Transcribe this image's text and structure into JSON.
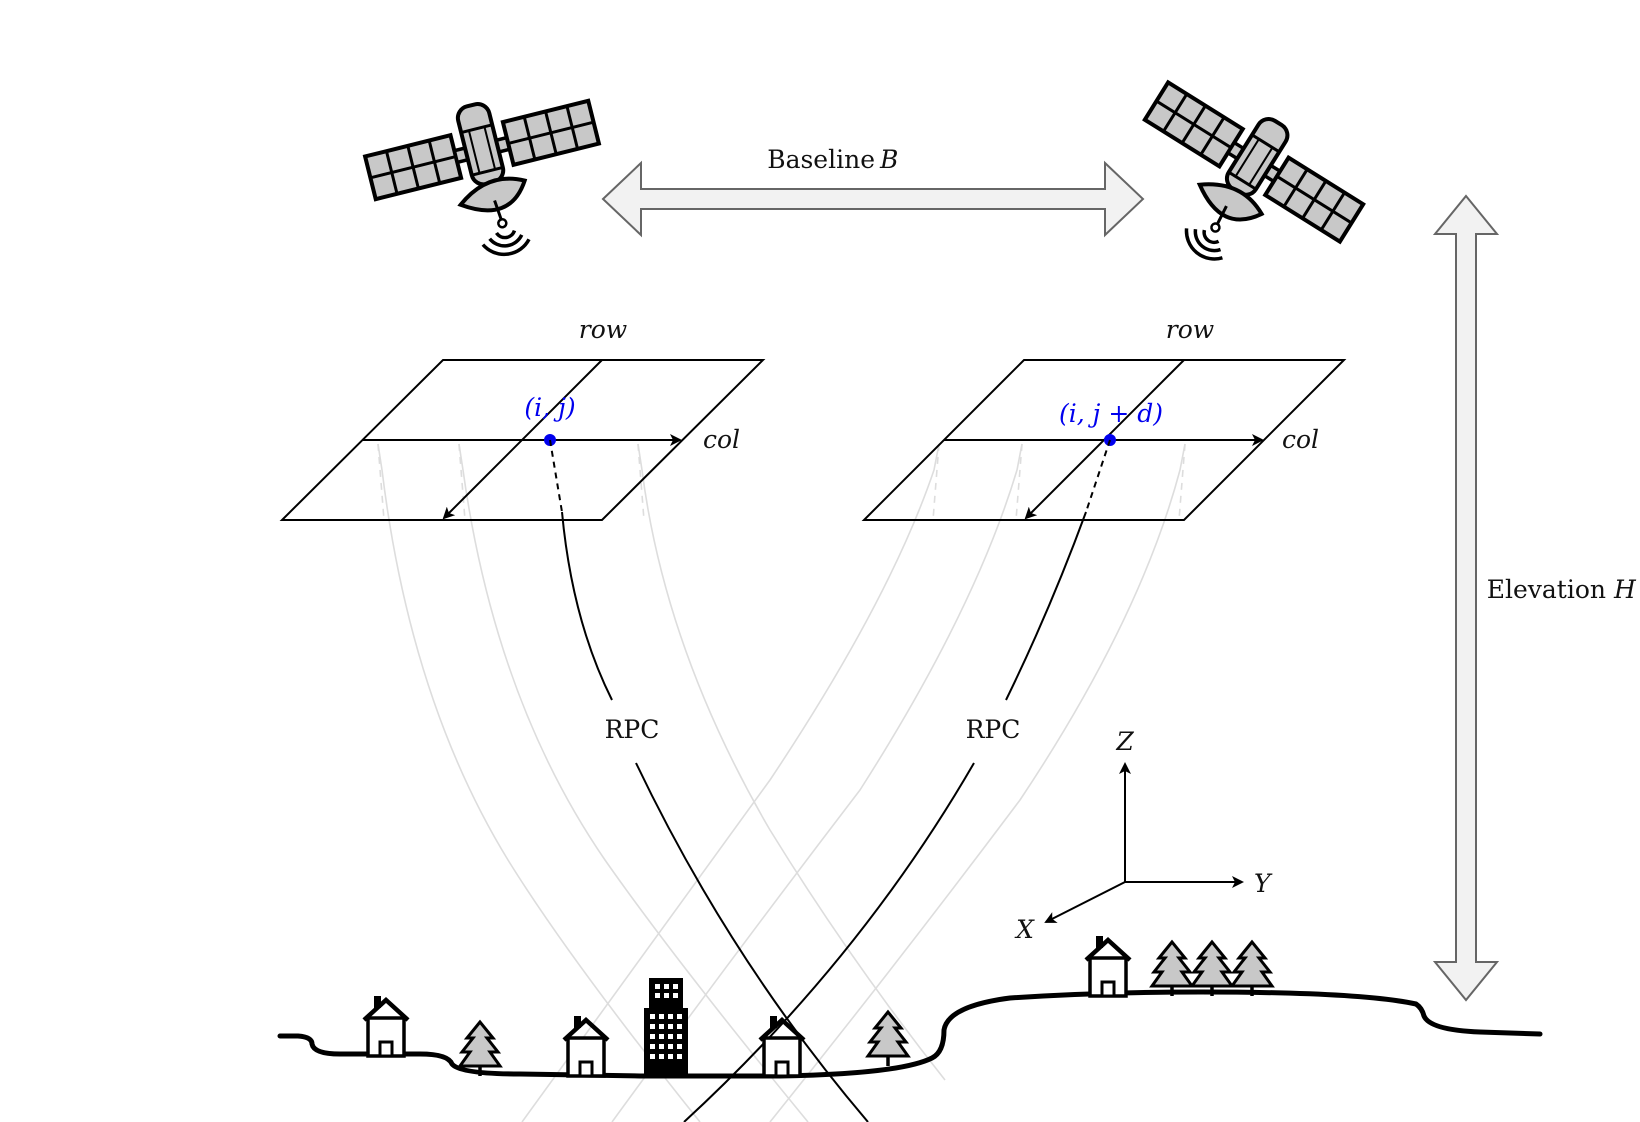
{
  "diagram": {
    "baseline_label": "Baseline",
    "baseline_symbol": "B",
    "elevation_label": "Elevation",
    "elevation_symbol": "H",
    "left_image": {
      "row_label": "row",
      "col_label": "col",
      "pixel_label": "(i, j)",
      "projection_label": "RPC"
    },
    "right_image": {
      "row_label": "row",
      "col_label": "col",
      "pixel_label": "(i, j + d)",
      "projection_label": "RPC"
    },
    "axes": {
      "z": "Z",
      "y": "Y",
      "x": "X"
    },
    "colors": {
      "pixel_point": "#0000ee",
      "satellite_body": "#c8c8c8",
      "arrow_fill": "#f2f2f2",
      "ray_gray": "#dddddd"
    },
    "icons": [
      "satellite-icon",
      "house-icon",
      "tree-icon",
      "building-icon"
    ]
  }
}
